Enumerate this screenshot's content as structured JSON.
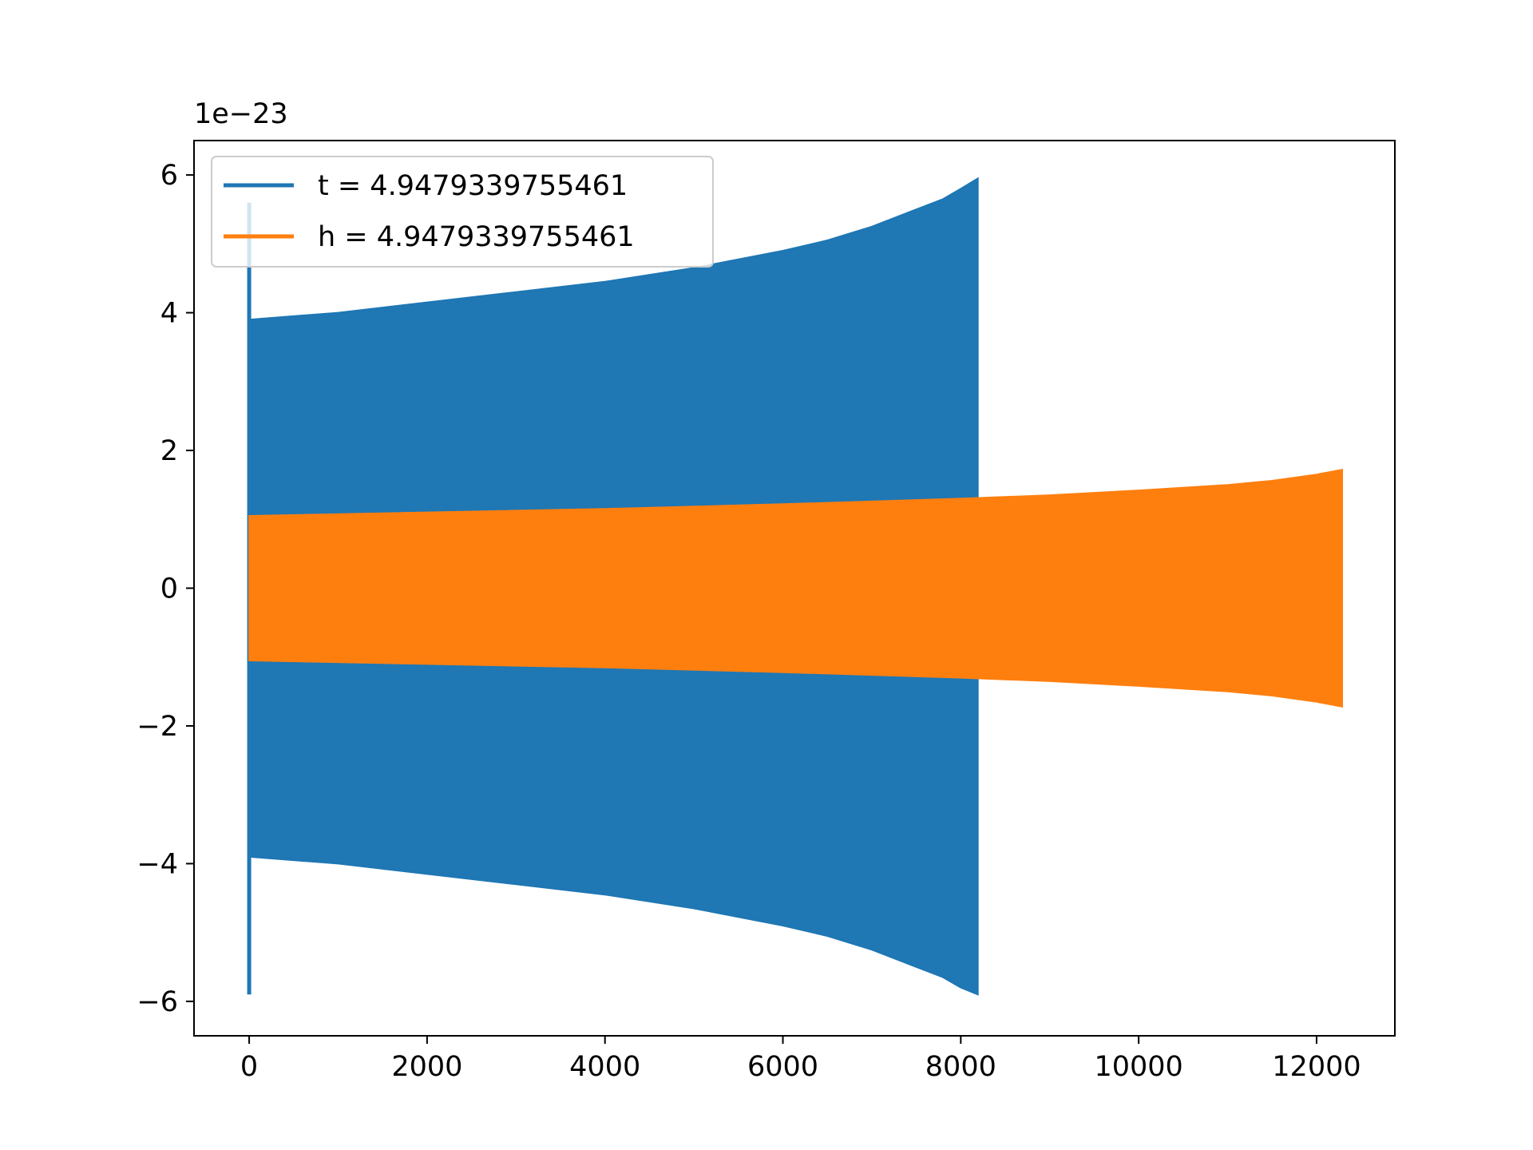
{
  "chart_data": {
    "type": "line",
    "title": "",
    "xlabel": "",
    "ylabel": "",
    "y_offset_label": "1e−23",
    "xlim": [
      -620,
      12880
    ],
    "ylim": [
      -6.5,
      6.5
    ],
    "x_ticks": [
      0,
      2000,
      4000,
      6000,
      8000,
      10000,
      12000
    ],
    "x_tick_labels": [
      "0",
      "2000",
      "4000",
      "6000",
      "8000",
      "10000",
      "12000"
    ],
    "y_ticks": [
      6,
      4,
      2,
      0,
      -2,
      -4,
      -6
    ],
    "y_tick_labels": [
      "6",
      "4",
      "2",
      "0",
      "−2",
      "−4",
      "−6"
    ],
    "grid": false,
    "legend_position": "top-left",
    "series": [
      {
        "name": "t = 4.9479339755461",
        "color": "#1f77b4",
        "rendering": "dense oscillation (filled envelope)",
        "initial_spike": {
          "x": 0,
          "upper": 5.6,
          "lower": -5.9
        },
        "envelope": {
          "x": [
            0,
            1000,
            2000,
            3000,
            4000,
            5000,
            6000,
            6500,
            7000,
            7500,
            7800,
            8000,
            8192
          ],
          "upper": [
            3.9,
            4.0,
            4.15,
            4.3,
            4.45,
            4.65,
            4.9,
            5.05,
            5.25,
            5.5,
            5.65,
            5.8,
            5.95
          ],
          "lower": [
            -3.9,
            -4.0,
            -4.15,
            -4.3,
            -4.45,
            -4.65,
            -4.9,
            -5.05,
            -5.25,
            -5.5,
            -5.65,
            -5.8,
            -5.9
          ]
        }
      },
      {
        "name": "h = 4.9479339755461",
        "color": "#ff7f0e",
        "rendering": "dense oscillation (filled envelope)",
        "envelope": {
          "x": [
            0,
            2000,
            4000,
            6000,
            8000,
            9000,
            10000,
            11000,
            11500,
            12000,
            12288
          ],
          "upper": [
            1.05,
            1.1,
            1.15,
            1.22,
            1.3,
            1.35,
            1.42,
            1.5,
            1.56,
            1.65,
            1.72
          ],
          "lower": [
            -1.05,
            -1.1,
            -1.15,
            -1.22,
            -1.3,
            -1.35,
            -1.42,
            -1.5,
            -1.56,
            -1.65,
            -1.72
          ]
        }
      }
    ]
  }
}
